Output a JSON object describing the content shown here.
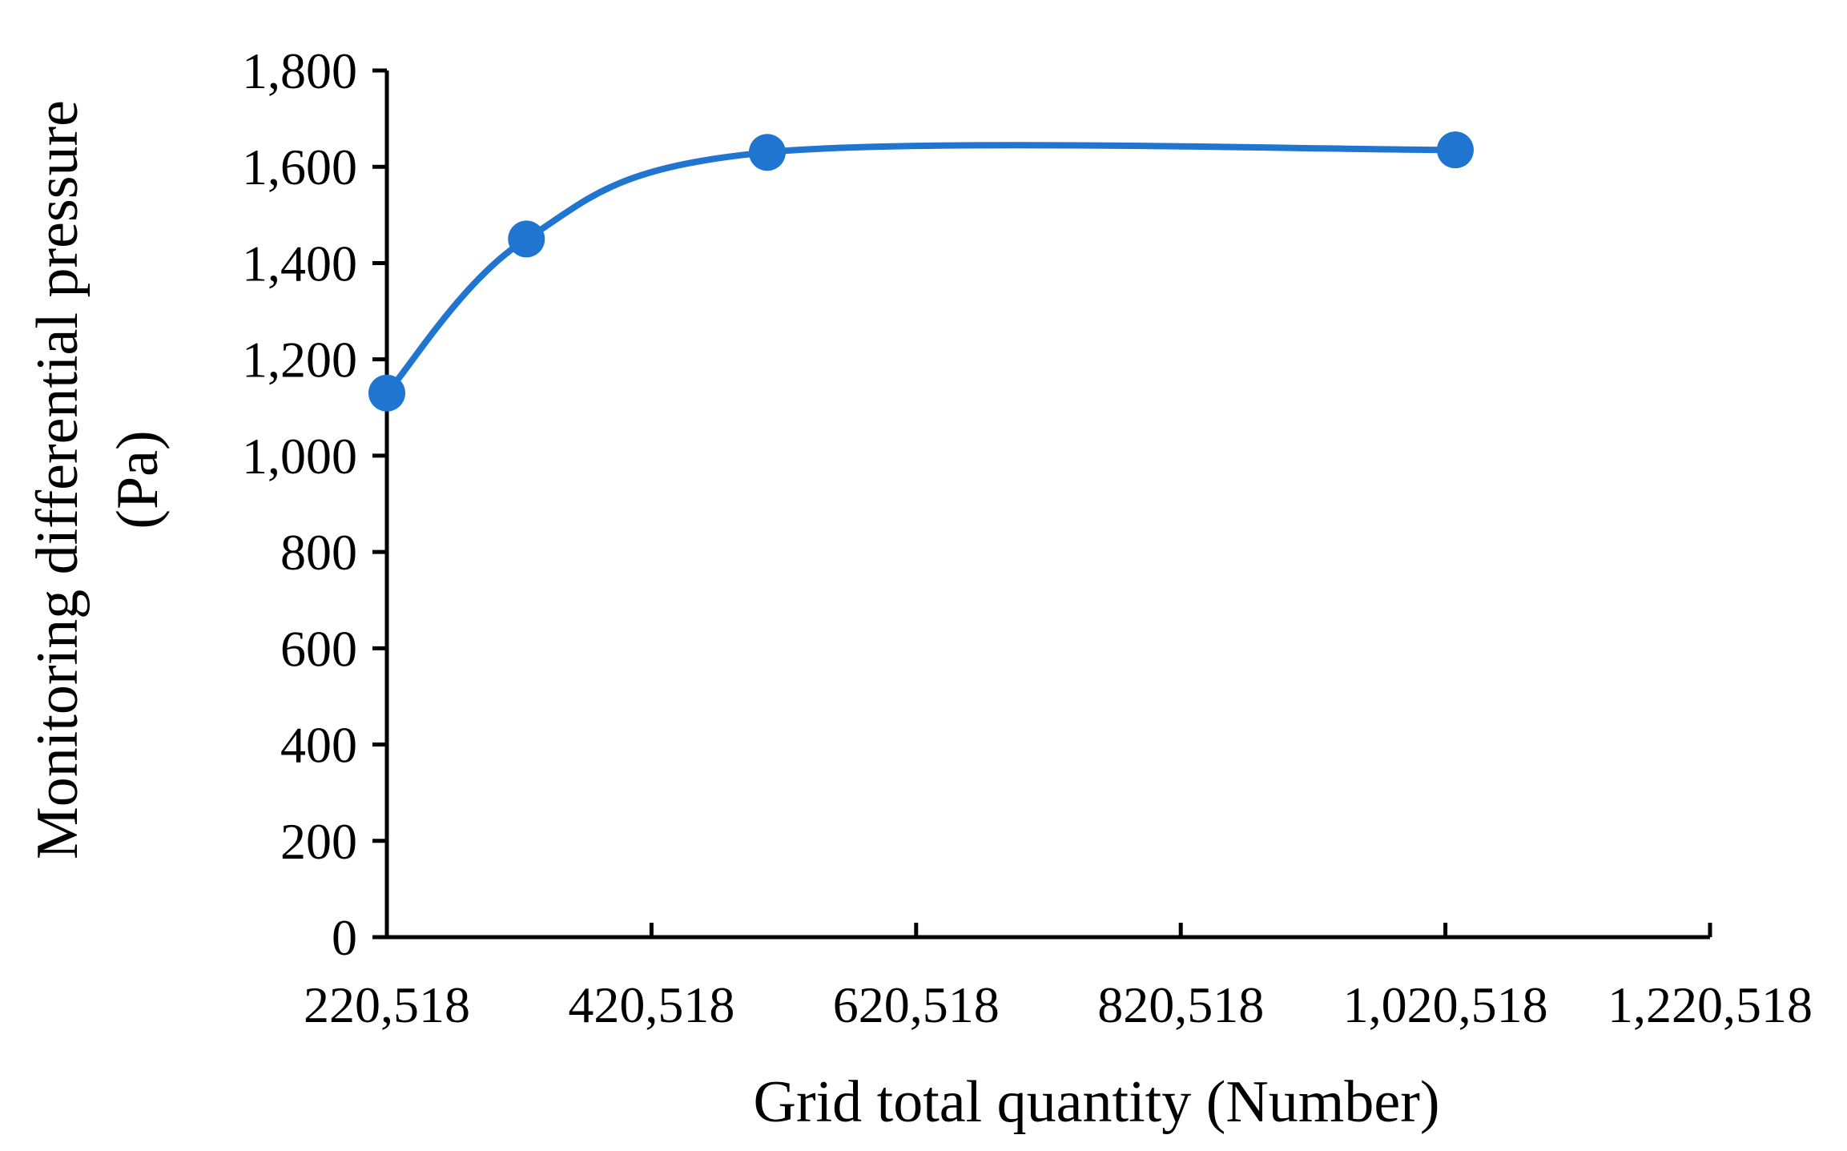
{
  "chart_data": {
    "type": "line",
    "smooth": true,
    "xlabel": "Grid total quantity (Number)",
    "ylabel_lines": [
      "Monitoring differential pressure",
      "(Pa)"
    ],
    "xlim": [
      220518,
      1220518
    ],
    "ylim": [
      0,
      1800
    ],
    "x_ticks": [
      220518,
      420518,
      620518,
      820518,
      1020518,
      1220518
    ],
    "x_tick_labels": [
      "220,518",
      "420,518",
      "620,518",
      "820,518",
      "1,020,518",
      "1,220,518"
    ],
    "y_ticks": [
      0,
      200,
      400,
      600,
      800,
      1000,
      1200,
      1400,
      1600,
      1800
    ],
    "y_tick_labels": [
      "0",
      "200",
      "400",
      "600",
      "800",
      "1,000",
      "1,200",
      "1,400",
      "1,600",
      "1,800"
    ],
    "grid": false,
    "legend": "none",
    "series": [
      {
        "color": "#1f75cf",
        "marker": "circle",
        "points": [
          {
            "x": 220518,
            "y": 1130
          },
          {
            "x": 326000,
            "y": 1450
          },
          {
            "x": 508000,
            "y": 1630
          },
          {
            "x": 1028000,
            "y": 1635
          }
        ]
      }
    ]
  }
}
